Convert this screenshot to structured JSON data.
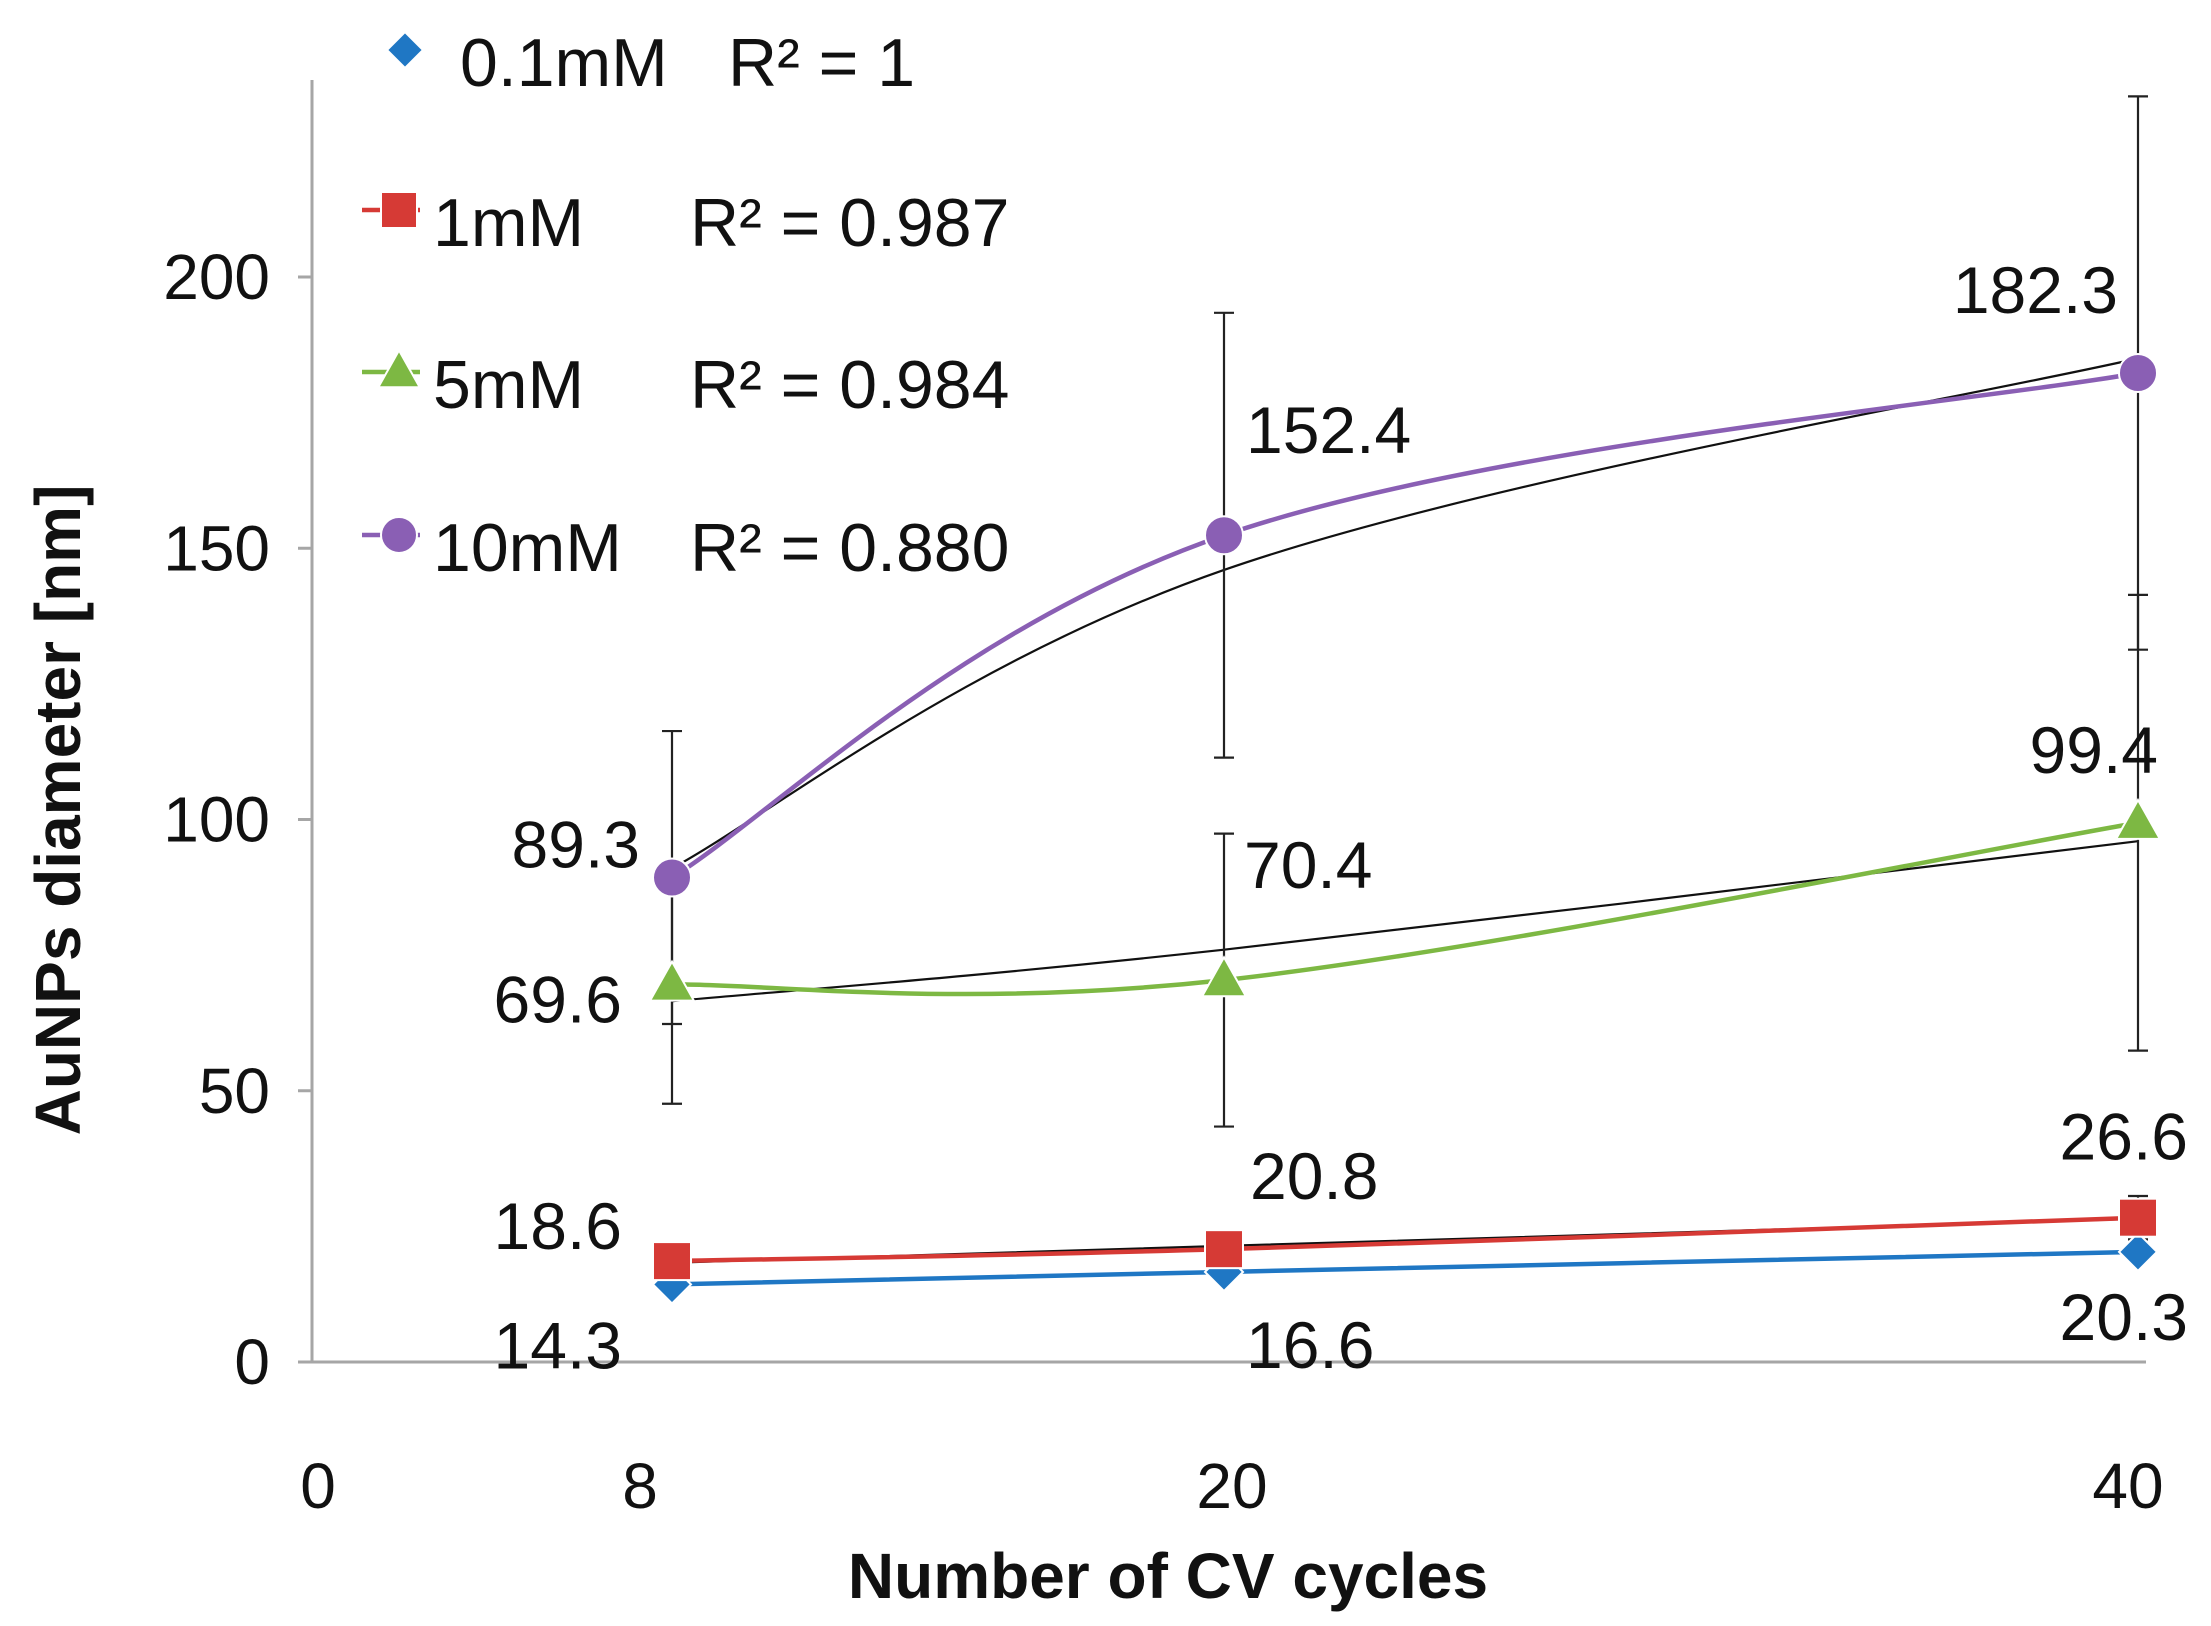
{
  "chart_data": {
    "type": "line",
    "xlabel": "Number of CV cycles",
    "ylabel": "AuNPs diameter [nm]",
    "ylim": [
      0,
      200
    ],
    "y_ticks": [
      "0",
      "50",
      "100",
      "150",
      "200"
    ],
    "x_ticks": [
      "0",
      "8",
      "20",
      "40"
    ],
    "x_positions": [
      8,
      20,
      40
    ],
    "grid": false,
    "legend_position": "top-left",
    "series": [
      {
        "name": "0.1mM",
        "r2": "R² = 1",
        "color": "#1f77c4",
        "marker": "diamond",
        "values": [
          14.3,
          16.6,
          20.3
        ],
        "labels": [
          "14.3",
          "16.6",
          "20.3"
        ],
        "error": [
          0,
          0,
          0
        ],
        "trend": [
          14.3,
          16.6,
          20.3
        ]
      },
      {
        "name": "1mM",
        "r2": "R² = 0.987",
        "color": "#d63a35",
        "marker": "square",
        "values": [
          18.6,
          20.8,
          26.6
        ],
        "labels": [
          "18.6",
          "20.8",
          "26.6"
        ],
        "error": [
          0,
          0,
          4
        ],
        "trend": [
          18.3,
          21.4,
          26.4
        ]
      },
      {
        "name": "5mM",
        "r2": "R² = 0.984",
        "color": "#7db843",
        "marker": "triangle",
        "values": [
          69.6,
          70.4,
          99.4
        ],
        "labels": [
          "69.6",
          "70.4",
          "99.4"
        ],
        "error": [
          22,
          27,
          42
        ],
        "trend": [
          66.5,
          76.0,
          96.0
        ]
      },
      {
        "name": "10mM",
        "r2": "R² = 0.880",
        "color": "#8a5fb4",
        "marker": "circle",
        "values": [
          89.3,
          152.4,
          182.3
        ],
        "labels": [
          "89.3",
          "152.4",
          "182.3"
        ],
        "error": [
          27,
          41,
          51
        ],
        "trend": [
          91.0,
          146.0,
          185.0
        ]
      }
    ]
  }
}
